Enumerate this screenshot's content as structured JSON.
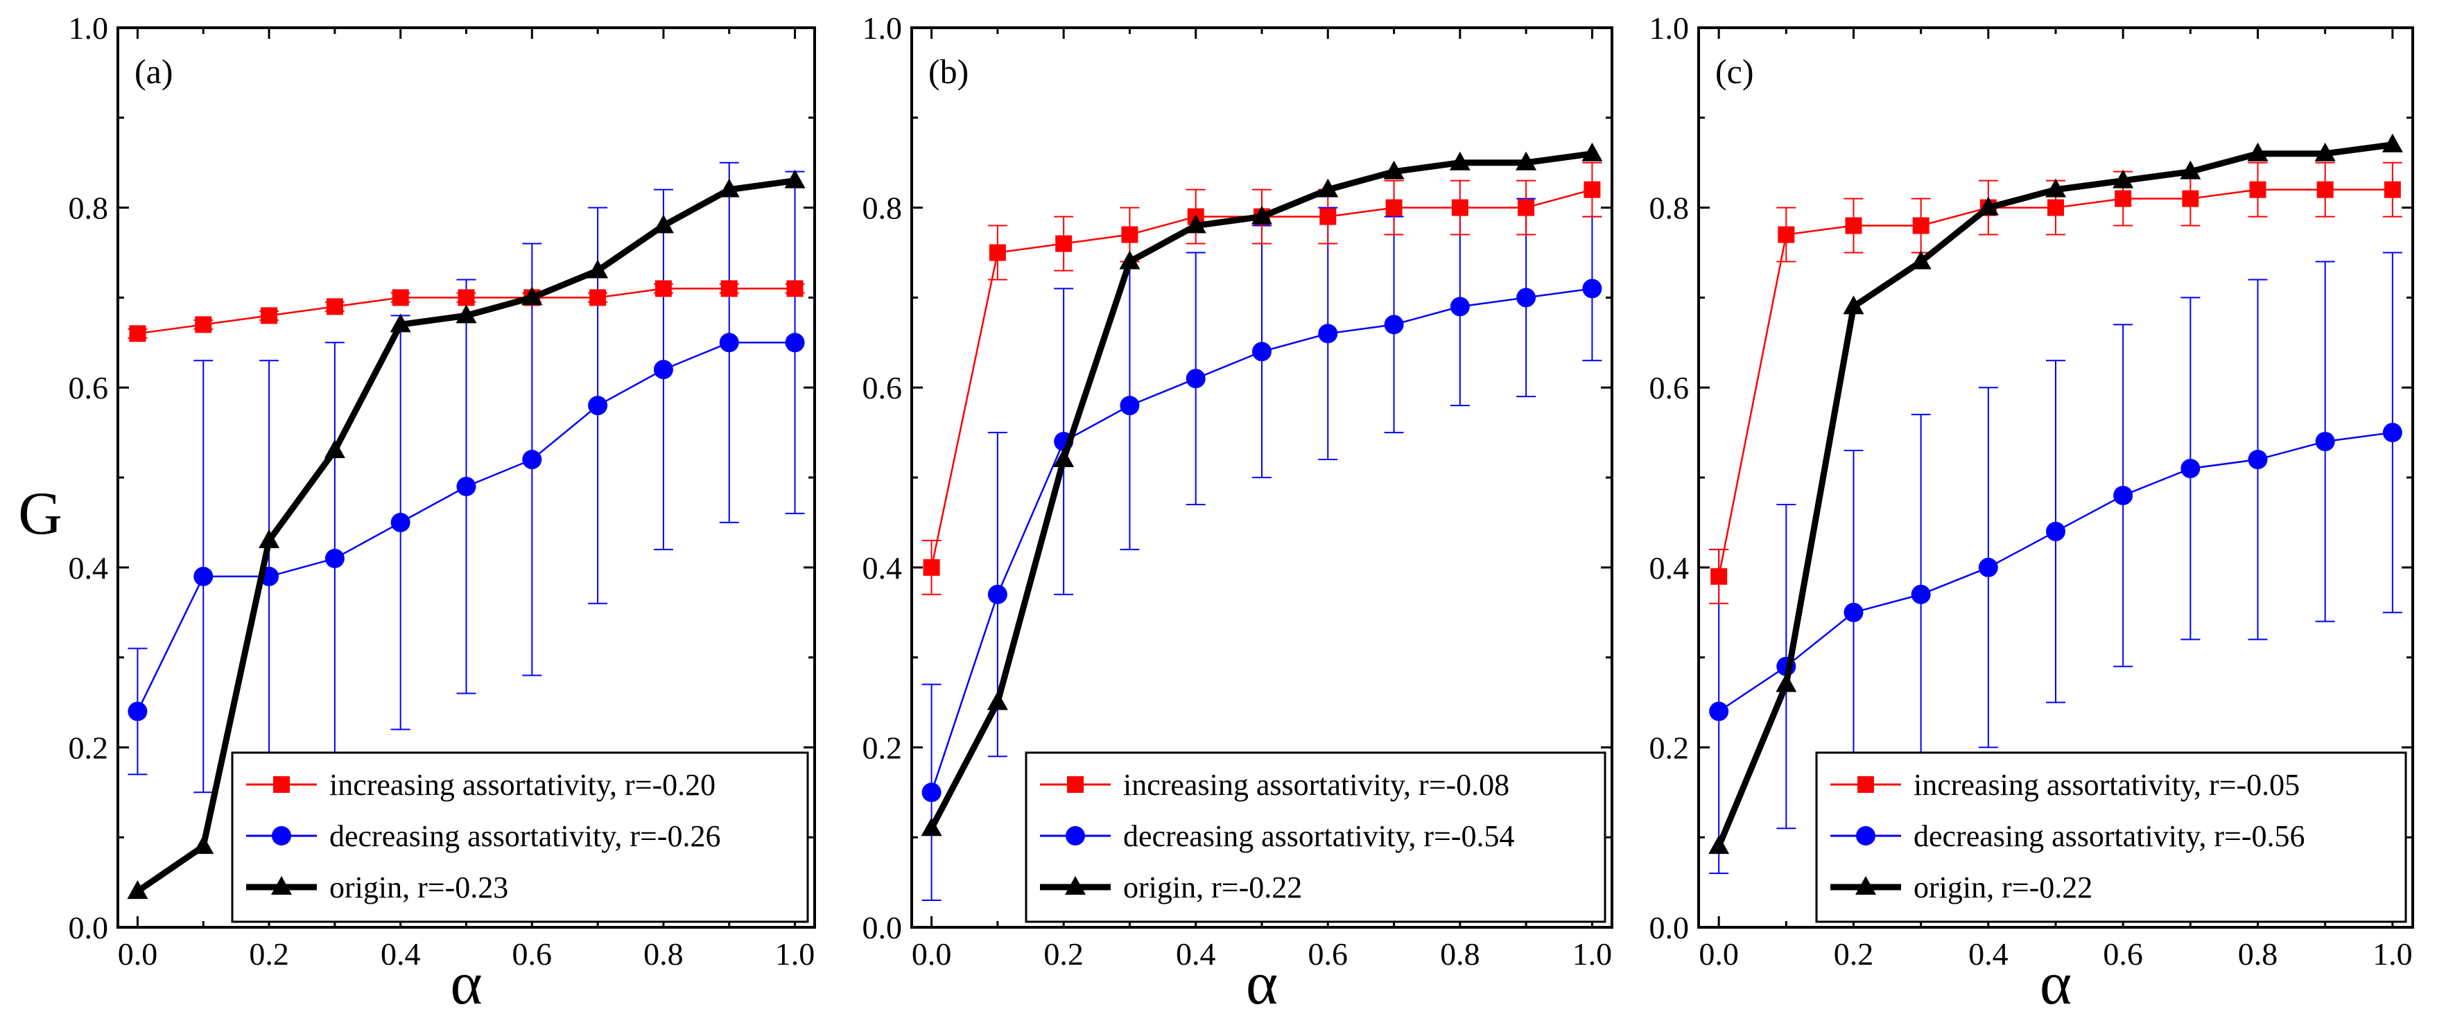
{
  "figure": {
    "ylabel": "G",
    "xlabel": "α"
  },
  "colors": {
    "increasing": "#ff0000",
    "decreasing": "#0000ff",
    "origin": "#000000"
  },
  "chart_data": [
    {
      "type": "line",
      "panel_label": "(a)",
      "xlabel": "α",
      "ylabel": "G",
      "xlim": [
        -0.03,
        1.03
      ],
      "ylim": [
        0.0,
        1.0
      ],
      "x_ticks": [
        "0.0",
        "0.2",
        "0.4",
        "0.6",
        "0.8",
        "1.0"
      ],
      "y_ticks": [
        "0.0",
        "0.2",
        "0.4",
        "0.6",
        "0.8",
        "1.0"
      ],
      "x": [
        0.0,
        0.1,
        0.2,
        0.3,
        0.4,
        0.5,
        0.6,
        0.7,
        0.8,
        0.9,
        1.0
      ],
      "legend_position": "bottom-right",
      "series": [
        {
          "key": "increasing",
          "name": "increasing assortativity, r=-0.20",
          "marker": "square",
          "values": [
            0.66,
            0.67,
            0.68,
            0.69,
            0.7,
            0.7,
            0.7,
            0.7,
            0.71,
            0.71,
            0.71
          ],
          "errors": [
            0.005,
            0.005,
            0.005,
            0.005,
            0.005,
            0.005,
            0.005,
            0.005,
            0.005,
            0.005,
            0.005
          ]
        },
        {
          "key": "decreasing",
          "name": "decreasing assortativity, r=-0.26",
          "marker": "circle",
          "values": [
            0.24,
            0.39,
            0.39,
            0.41,
            0.45,
            0.49,
            0.52,
            0.58,
            0.62,
            0.65,
            0.65
          ],
          "errors": [
            0.07,
            0.24,
            0.24,
            0.24,
            0.23,
            0.23,
            0.24,
            0.22,
            0.2,
            0.2,
            0.19
          ]
        },
        {
          "key": "origin",
          "name": "origin, r=-0.23",
          "marker": "triangle",
          "values": [
            0.04,
            0.09,
            0.43,
            0.53,
            0.67,
            0.68,
            0.7,
            0.73,
            0.78,
            0.82,
            0.83
          ],
          "errors": [
            0,
            0,
            0,
            0,
            0,
            0,
            0,
            0,
            0,
            0,
            0
          ]
        }
      ]
    },
    {
      "type": "line",
      "panel_label": "(b)",
      "xlabel": "α",
      "ylabel": "",
      "xlim": [
        -0.03,
        1.03
      ],
      "ylim": [
        0.0,
        1.0
      ],
      "x_ticks": [
        "0.0",
        "0.2",
        "0.4",
        "0.6",
        "0.8",
        "1.0"
      ],
      "y_ticks": [
        "0.0",
        "0.2",
        "0.4",
        "0.6",
        "0.8",
        "1.0"
      ],
      "x": [
        0.0,
        0.1,
        0.2,
        0.3,
        0.4,
        0.5,
        0.6,
        0.7,
        0.8,
        0.9,
        1.0
      ],
      "legend_position": "bottom-right",
      "series": [
        {
          "key": "increasing",
          "name": "increasing assortativity, r=-0.08",
          "marker": "square",
          "values": [
            0.4,
            0.75,
            0.76,
            0.77,
            0.79,
            0.79,
            0.79,
            0.8,
            0.8,
            0.8,
            0.82
          ],
          "errors": [
            0.03,
            0.03,
            0.03,
            0.03,
            0.03,
            0.03,
            0.03,
            0.03,
            0.03,
            0.03,
            0.03
          ]
        },
        {
          "key": "decreasing",
          "name": "decreasing assortativity, r=-0.54",
          "marker": "circle",
          "values": [
            0.15,
            0.37,
            0.54,
            0.58,
            0.61,
            0.64,
            0.66,
            0.67,
            0.69,
            0.7,
            0.71
          ],
          "errors": [
            0.12,
            0.18,
            0.17,
            0.16,
            0.14,
            0.14,
            0.14,
            0.12,
            0.11,
            0.11,
            0.08
          ]
        },
        {
          "key": "origin",
          "name": "origin, r=-0.22",
          "marker": "triangle",
          "values": [
            0.11,
            0.25,
            0.52,
            0.74,
            0.78,
            0.79,
            0.82,
            0.84,
            0.85,
            0.85,
            0.86
          ],
          "errors": [
            0,
            0,
            0,
            0,
            0,
            0,
            0,
            0,
            0,
            0,
            0
          ]
        }
      ]
    },
    {
      "type": "line",
      "panel_label": "(c)",
      "xlabel": "α",
      "ylabel": "",
      "xlim": [
        -0.03,
        1.03
      ],
      "ylim": [
        0.0,
        1.0
      ],
      "x_ticks": [
        "0.0",
        "0.2",
        "0.4",
        "0.6",
        "0.8",
        "1.0"
      ],
      "y_ticks": [
        "0.0",
        "0.2",
        "0.4",
        "0.6",
        "0.8",
        "1.0"
      ],
      "x": [
        0.0,
        0.1,
        0.2,
        0.3,
        0.4,
        0.5,
        0.6,
        0.7,
        0.8,
        0.9,
        1.0
      ],
      "legend_position": "bottom-right",
      "series": [
        {
          "key": "increasing",
          "name": "increasing assortativity, r=-0.05",
          "marker": "square",
          "values": [
            0.39,
            0.77,
            0.78,
            0.78,
            0.8,
            0.8,
            0.81,
            0.81,
            0.82,
            0.82,
            0.82
          ],
          "errors": [
            0.03,
            0.03,
            0.03,
            0.03,
            0.03,
            0.03,
            0.03,
            0.03,
            0.03,
            0.03,
            0.03
          ]
        },
        {
          "key": "decreasing",
          "name": "decreasing assortativity, r=-0.56",
          "marker": "circle",
          "values": [
            0.24,
            0.29,
            0.35,
            0.37,
            0.4,
            0.44,
            0.48,
            0.51,
            0.52,
            0.54,
            0.55
          ],
          "errors": [
            0.18,
            0.18,
            0.18,
            0.2,
            0.2,
            0.19,
            0.19,
            0.19,
            0.2,
            0.2,
            0.2
          ]
        },
        {
          "key": "origin",
          "name": "origin, r=-0.22",
          "marker": "triangle",
          "values": [
            0.09,
            0.27,
            0.69,
            0.74,
            0.8,
            0.82,
            0.83,
            0.84,
            0.86,
            0.86,
            0.87
          ],
          "errors": [
            0,
            0,
            0,
            0,
            0,
            0,
            0,
            0,
            0,
            0,
            0
          ]
        }
      ]
    }
  ]
}
